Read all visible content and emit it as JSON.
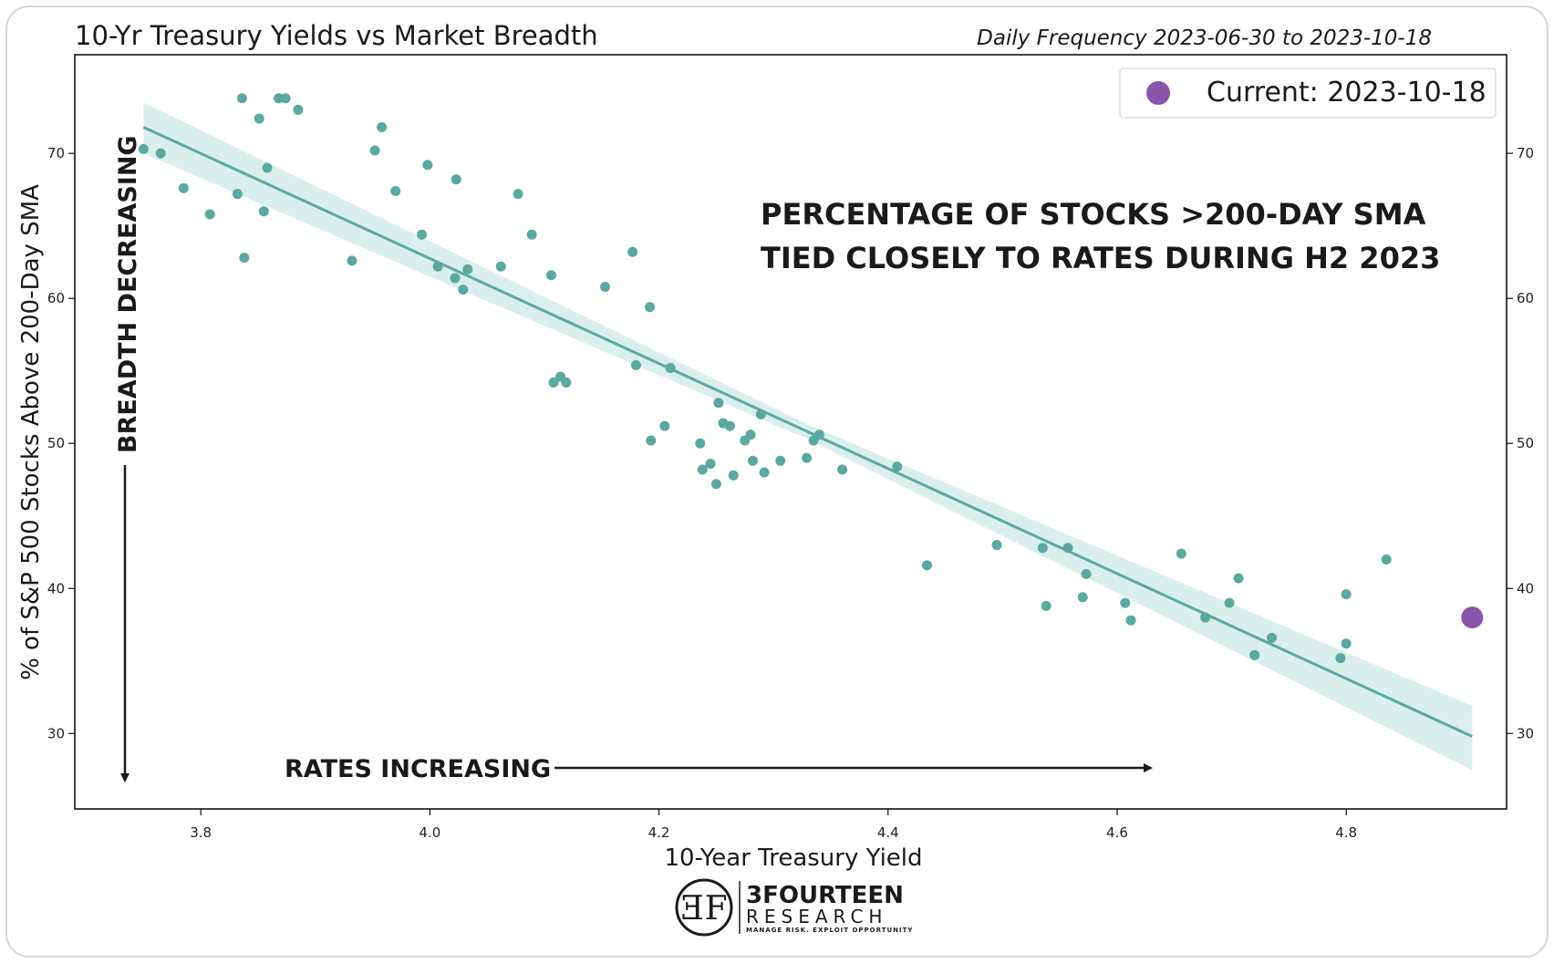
{
  "chart_data": {
    "type": "scatter",
    "title": "10-Yr Treasury Yields vs Market Breadth",
    "subtitle": "Daily Frequency 2023-06-30 to 2023-10-18",
    "xlabel": "10-Year Treasury Yield",
    "ylabel": "% of S&P 500 Stocks Above 200-Day SMA",
    "xlim": [
      3.69,
      4.94
    ],
    "ylim": [
      24.8,
      76.8
    ],
    "x_ticks": [
      "3.8",
      "4.0",
      "4.2",
      "4.4",
      "4.6",
      "4.8"
    ],
    "y_ticks": [
      "30",
      "40",
      "50",
      "60",
      "70"
    ],
    "right_axis_ticks": true,
    "grid": false,
    "legend": {
      "position": "top-right",
      "label": "Current: 2023-10-18"
    },
    "colors": {
      "points": "#5aa9a0",
      "fit_line": "#5aa9a0",
      "band": "#d3ebe7",
      "current": "#8a55a8"
    },
    "series": [
      {
        "points": [
          [
            3.75,
            70.3
          ],
          [
            3.765,
            70.0
          ],
          [
            3.785,
            67.6
          ],
          [
            3.808,
            65.8
          ],
          [
            3.832,
            67.2
          ],
          [
            3.836,
            73.8
          ],
          [
            3.838,
            62.8
          ],
          [
            3.851,
            72.4
          ],
          [
            3.855,
            66.0
          ],
          [
            3.858,
            69.0
          ],
          [
            3.868,
            73.8
          ],
          [
            3.874,
            73.8
          ],
          [
            3.885,
            73.0
          ],
          [
            3.932,
            62.6
          ],
          [
            3.952,
            70.2
          ],
          [
            3.958,
            71.8
          ],
          [
            3.97,
            67.4
          ],
          [
            3.993,
            64.4
          ],
          [
            3.998,
            69.2
          ],
          [
            4.007,
            62.2
          ],
          [
            4.022,
            61.4
          ],
          [
            4.023,
            68.2
          ],
          [
            4.029,
            60.6
          ],
          [
            4.033,
            62.0
          ],
          [
            4.062,
            62.2
          ],
          [
            4.077,
            67.2
          ],
          [
            4.089,
            64.4
          ],
          [
            4.106,
            61.6
          ],
          [
            4.108,
            54.2
          ],
          [
            4.114,
            54.6
          ],
          [
            4.119,
            54.2
          ],
          [
            4.153,
            60.8
          ],
          [
            4.177,
            63.2
          ],
          [
            4.18,
            55.4
          ],
          [
            4.192,
            59.4
          ],
          [
            4.193,
            50.2
          ],
          [
            4.205,
            51.2
          ],
          [
            4.21,
            55.2
          ],
          [
            4.236,
            50.0
          ],
          [
            4.238,
            48.2
          ],
          [
            4.245,
            48.6
          ],
          [
            4.25,
            47.2
          ],
          [
            4.252,
            52.8
          ],
          [
            4.256,
            51.4
          ],
          [
            4.262,
            51.2
          ],
          [
            4.265,
            47.8
          ],
          [
            4.275,
            50.2
          ],
          [
            4.28,
            50.6
          ],
          [
            4.282,
            48.8
          ],
          [
            4.289,
            52.0
          ],
          [
            4.292,
            48.0
          ],
          [
            4.306,
            48.8
          ],
          [
            4.329,
            49.0
          ],
          [
            4.335,
            50.2
          ],
          [
            4.34,
            50.6
          ],
          [
            4.36,
            48.2
          ],
          [
            4.408,
            48.4
          ],
          [
            4.434,
            41.6
          ],
          [
            4.495,
            43.0
          ],
          [
            4.535,
            42.8
          ],
          [
            4.538,
            38.8
          ],
          [
            4.557,
            42.8
          ],
          [
            4.57,
            39.4
          ],
          [
            4.573,
            41.0
          ],
          [
            4.607,
            39.0
          ],
          [
            4.612,
            37.8
          ],
          [
            4.656,
            42.4
          ],
          [
            4.677,
            38.0
          ],
          [
            4.698,
            39.0
          ],
          [
            4.706,
            40.7
          ],
          [
            4.72,
            35.4
          ],
          [
            4.735,
            36.6
          ],
          [
            4.795,
            35.2
          ],
          [
            4.8,
            36.2
          ],
          [
            4.8,
            39.6
          ],
          [
            4.835,
            42.0
          ]
        ]
      }
    ],
    "fit_line": {
      "x": [
        3.75,
        4.91
      ],
      "y": [
        71.8,
        29.8
      ]
    },
    "confidence_band": {
      "x": [
        3.75,
        4.33,
        4.91
      ],
      "upper": [
        73.5,
        51.3,
        31.9
      ],
      "lower": [
        70.0,
        50.3,
        27.5
      ]
    },
    "current_point": {
      "x": 4.91,
      "y": 38.0
    },
    "annotations": {
      "headline_line1": "PERCENTAGE OF STOCKS >200-DAY SMA",
      "headline_line2": "TIED CLOSELY TO RATES DURING H2 2023",
      "vertical_arrow_label": "BREADTH DECREASING",
      "horizontal_arrow_label": "RATES INCREASING"
    }
  },
  "logo": {
    "name": "3FOURTEEN",
    "sub": "RESEARCH",
    "tagline": "MANAGE RISK. EXPLOIT OPPORTUNITY"
  }
}
